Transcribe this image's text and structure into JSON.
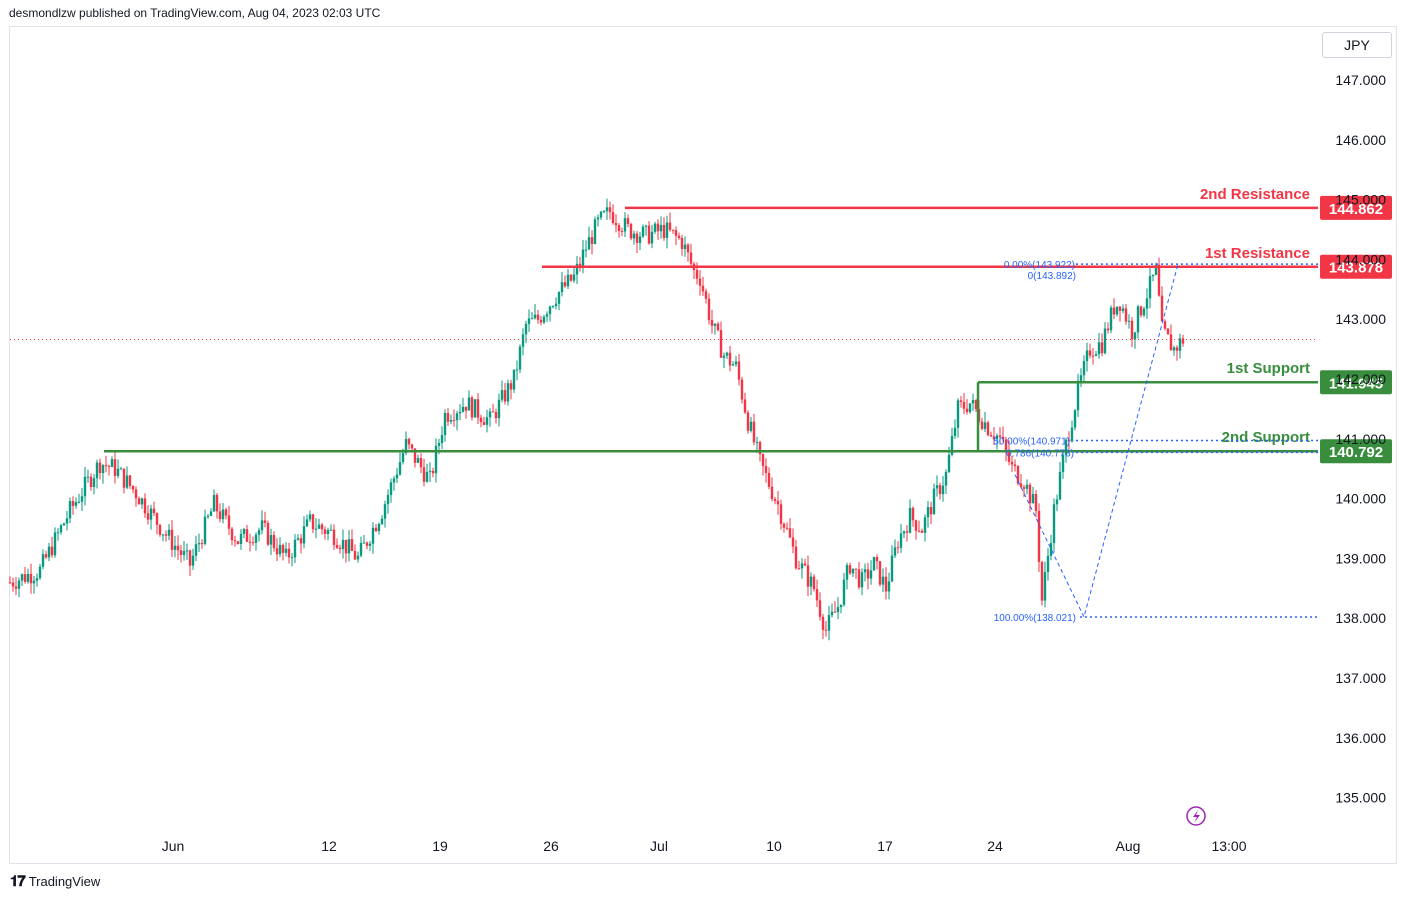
{
  "header": {
    "text": "desmondlzw published on TradingView.com, Aug 04, 2023 02:03 UTC"
  },
  "currency": "JPY",
  "footer": {
    "brand": "TradingView",
    "logo_icon": "tradingview-logo-icon"
  },
  "colors": {
    "up": "#089981",
    "down": "#f23645",
    "resistance": "#f23645",
    "support": "#388e3c",
    "fib": "#2962ff",
    "grid_text": "#131722",
    "last_price_line": "#f23645"
  },
  "chart_data": {
    "type": "candlestick",
    "symbol_currency": "JPY",
    "y_axis": {
      "ticks": [
        135.0,
        136.0,
        137.0,
        138.0,
        139.0,
        140.0,
        141.0,
        142.0,
        143.0,
        144.0,
        145.0,
        146.0,
        147.0
      ]
    },
    "x_axis": {
      "ticks": [
        "Jun",
        "12",
        "19",
        "26",
        "Jul",
        "10",
        "17",
        "24",
        "Aug",
        "13:00"
      ]
    },
    "levels": [
      {
        "label": "2nd Resistance",
        "value": 144.862,
        "value_text": "144.862",
        "kind": "resistance"
      },
      {
        "label": "1st Resistance",
        "value": 143.878,
        "value_text": "143.878",
        "kind": "resistance"
      },
      {
        "label": "1st Support",
        "value": 141.945,
        "value_text": "141.945",
        "kind": "support"
      },
      {
        "label": "2nd Support",
        "value": 140.792,
        "value_text": "140.792",
        "kind": "support"
      }
    ],
    "fibonacci": [
      {
        "text": "0.00%(143.922)",
        "value": 143.922
      },
      {
        "text": "0(143.892)",
        "value": 143.892
      },
      {
        "text": "50.00%(140.971)",
        "value": 140.971
      },
      {
        "text": "0.786(140.773)",
        "value": 140.773
      },
      {
        "text": "100.00%(138.021)",
        "value": 138.021
      }
    ],
    "last_price": 142.66,
    "path_anchors": [
      [
        0,
        138.6
      ],
      [
        10,
        138.8
      ],
      [
        20,
        139.8
      ],
      [
        30,
        140.6
      ],
      [
        35,
        140.5
      ],
      [
        42,
        140.1
      ],
      [
        52,
        139.4
      ],
      [
        60,
        138.9
      ],
      [
        68,
        139.9
      ],
      [
        76,
        139.3
      ],
      [
        84,
        139.5
      ],
      [
        92,
        139.0
      ],
      [
        100,
        139.6
      ],
      [
        108,
        139.4
      ],
      [
        116,
        139.0
      ],
      [
        124,
        139.8
      ],
      [
        132,
        140.9
      ],
      [
        140,
        140.3
      ],
      [
        145,
        141.4
      ],
      [
        152,
        141.6
      ],
      [
        160,
        141.3
      ],
      [
        168,
        142.0
      ],
      [
        172,
        142.9
      ],
      [
        176,
        143.0
      ],
      [
        182,
        143.4
      ],
      [
        188,
        143.7
      ],
      [
        192,
        144.2
      ],
      [
        196,
        144.6
      ],
      [
        200,
        144.8
      ],
      [
        206,
        144.5
      ],
      [
        212,
        144.4
      ],
      [
        218,
        144.5
      ],
      [
        224,
        144.3
      ],
      [
        228,
        143.8
      ],
      [
        230,
        143.7
      ],
      [
        234,
        142.9
      ],
      [
        238,
        142.4
      ],
      [
        242,
        142.2
      ],
      [
        246,
        141.3
      ],
      [
        250,
        140.6
      ],
      [
        256,
        139.9
      ],
      [
        262,
        139.0
      ],
      [
        268,
        138.5
      ],
      [
        272,
        137.8
      ],
      [
        276,
        138.2
      ],
      [
        280,
        138.9
      ],
      [
        284,
        138.6
      ],
      [
        288,
        138.9
      ],
      [
        292,
        138.5
      ],
      [
        296,
        139.3
      ],
      [
        300,
        139.7
      ],
      [
        304,
        139.5
      ],
      [
        308,
        140.0
      ],
      [
        312,
        140.4
      ],
      [
        316,
        141.5
      ],
      [
        320,
        141.6
      ],
      [
        326,
        141.2
      ],
      [
        330,
        141.0
      ],
      [
        334,
        140.5
      ],
      [
        338,
        140.3
      ],
      [
        342,
        139.8
      ],
      [
        344,
        138.3
      ],
      [
        348,
        139.8
      ],
      [
        352,
        140.9
      ],
      [
        356,
        141.8
      ],
      [
        360,
        142.5
      ],
      [
        364,
        142.6
      ],
      [
        368,
        143.2
      ],
      [
        370,
        143.3
      ],
      [
        374,
        142.8
      ],
      [
        378,
        143.3
      ],
      [
        382,
        143.8
      ],
      [
        384,
        142.8
      ],
      [
        388,
        142.5
      ],
      [
        391,
        142.66
      ]
    ]
  }
}
